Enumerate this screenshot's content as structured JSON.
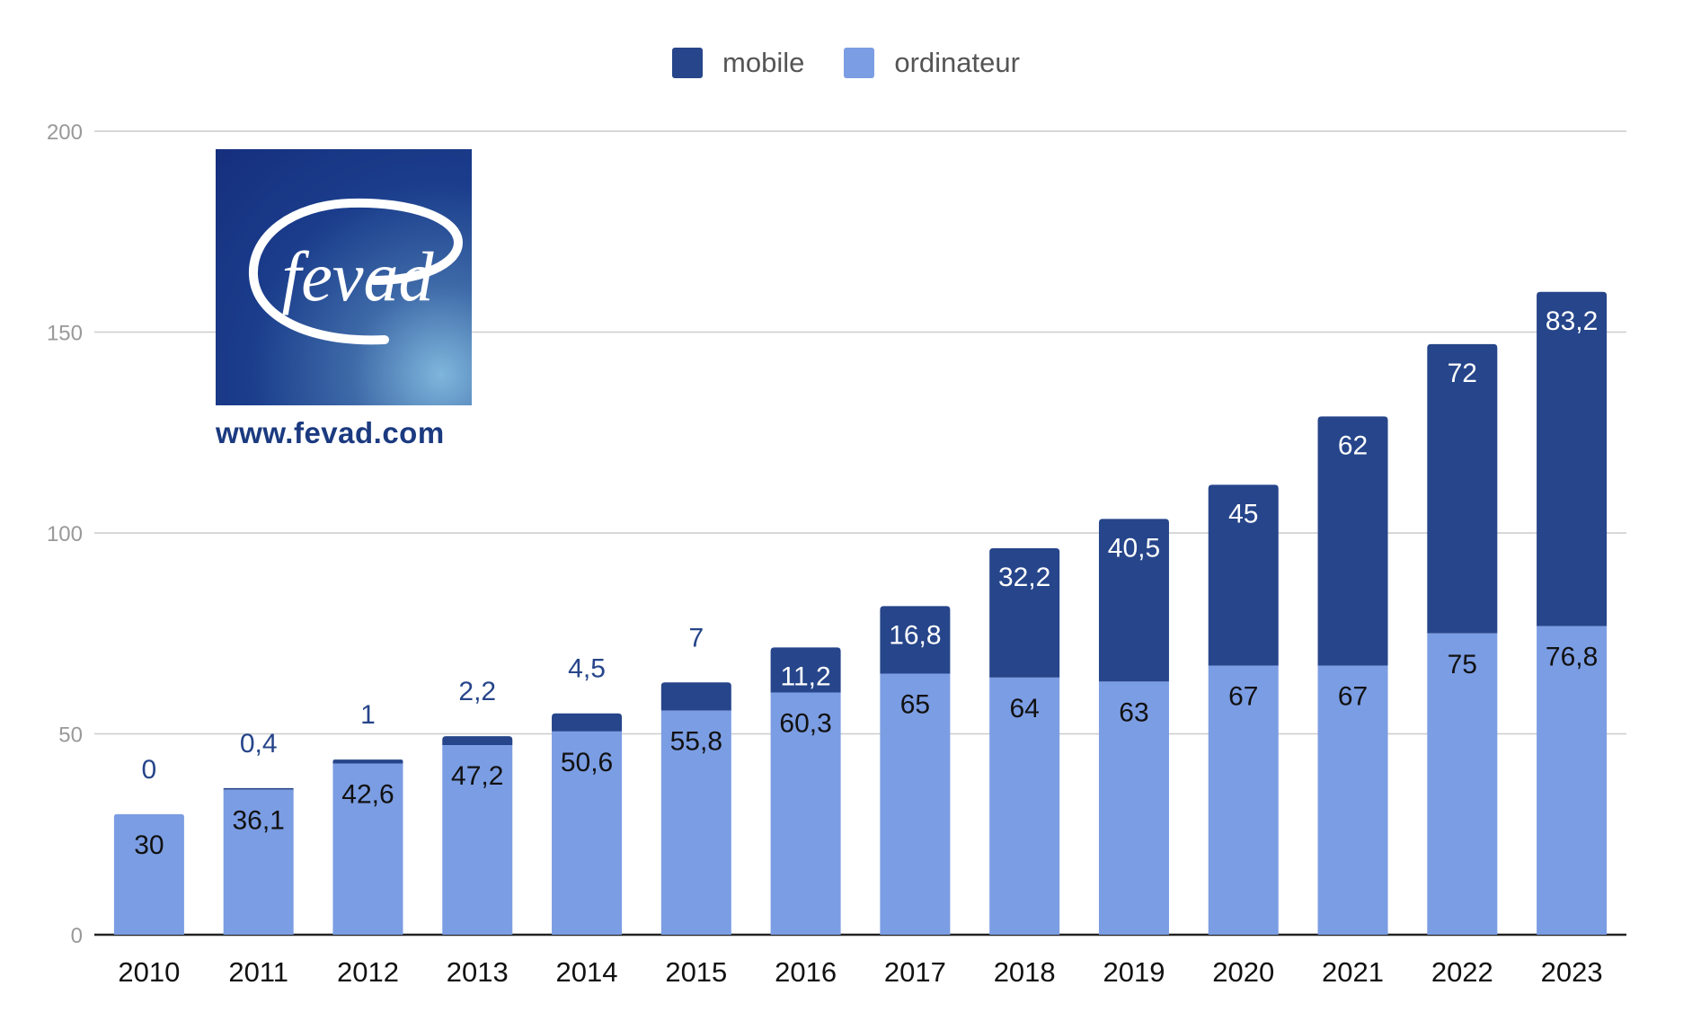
{
  "legend": [
    {
      "label": "mobile",
      "color": "#26458a"
    },
    {
      "label": "ordinateur",
      "color": "#7b9de3"
    }
  ],
  "logo": {
    "brand": "fevad",
    "url": "www.fevad.com"
  },
  "chart_data": {
    "type": "bar",
    "stacked": true,
    "categories": [
      "2010",
      "2011",
      "2012",
      "2013",
      "2014",
      "2015",
      "2016",
      "2017",
      "2018",
      "2019",
      "2020",
      "2021",
      "2022",
      "2023"
    ],
    "series": [
      {
        "name": "ordinateur",
        "color": "#7b9de3",
        "values": [
          30,
          36.1,
          42.6,
          47.2,
          50.6,
          55.8,
          60.3,
          65,
          64,
          63,
          67,
          67,
          75,
          76.8
        ],
        "labels": [
          "30",
          "36,1",
          "42,6",
          "47,2",
          "50,6",
          "55,8",
          "60,3",
          "65",
          "64",
          "63",
          "67",
          "67",
          "75",
          "76,8"
        ]
      },
      {
        "name": "mobile",
        "color": "#26458a",
        "values": [
          0,
          0.4,
          1,
          2.2,
          4.5,
          7,
          11.2,
          16.8,
          32.2,
          40.5,
          45,
          62,
          72,
          83.2
        ],
        "labels": [
          "0",
          "0,4",
          "1",
          "2,2",
          "4,5",
          "7",
          "11,2",
          "16,8",
          "32,2",
          "40,5",
          "45",
          "62",
          "72",
          "83,2"
        ]
      }
    ],
    "y_ticks": [
      "0",
      "50",
      "100",
      "150",
      "200"
    ],
    "ylim": [
      0,
      200
    ],
    "grid": true,
    "legend_position": "top-center"
  }
}
